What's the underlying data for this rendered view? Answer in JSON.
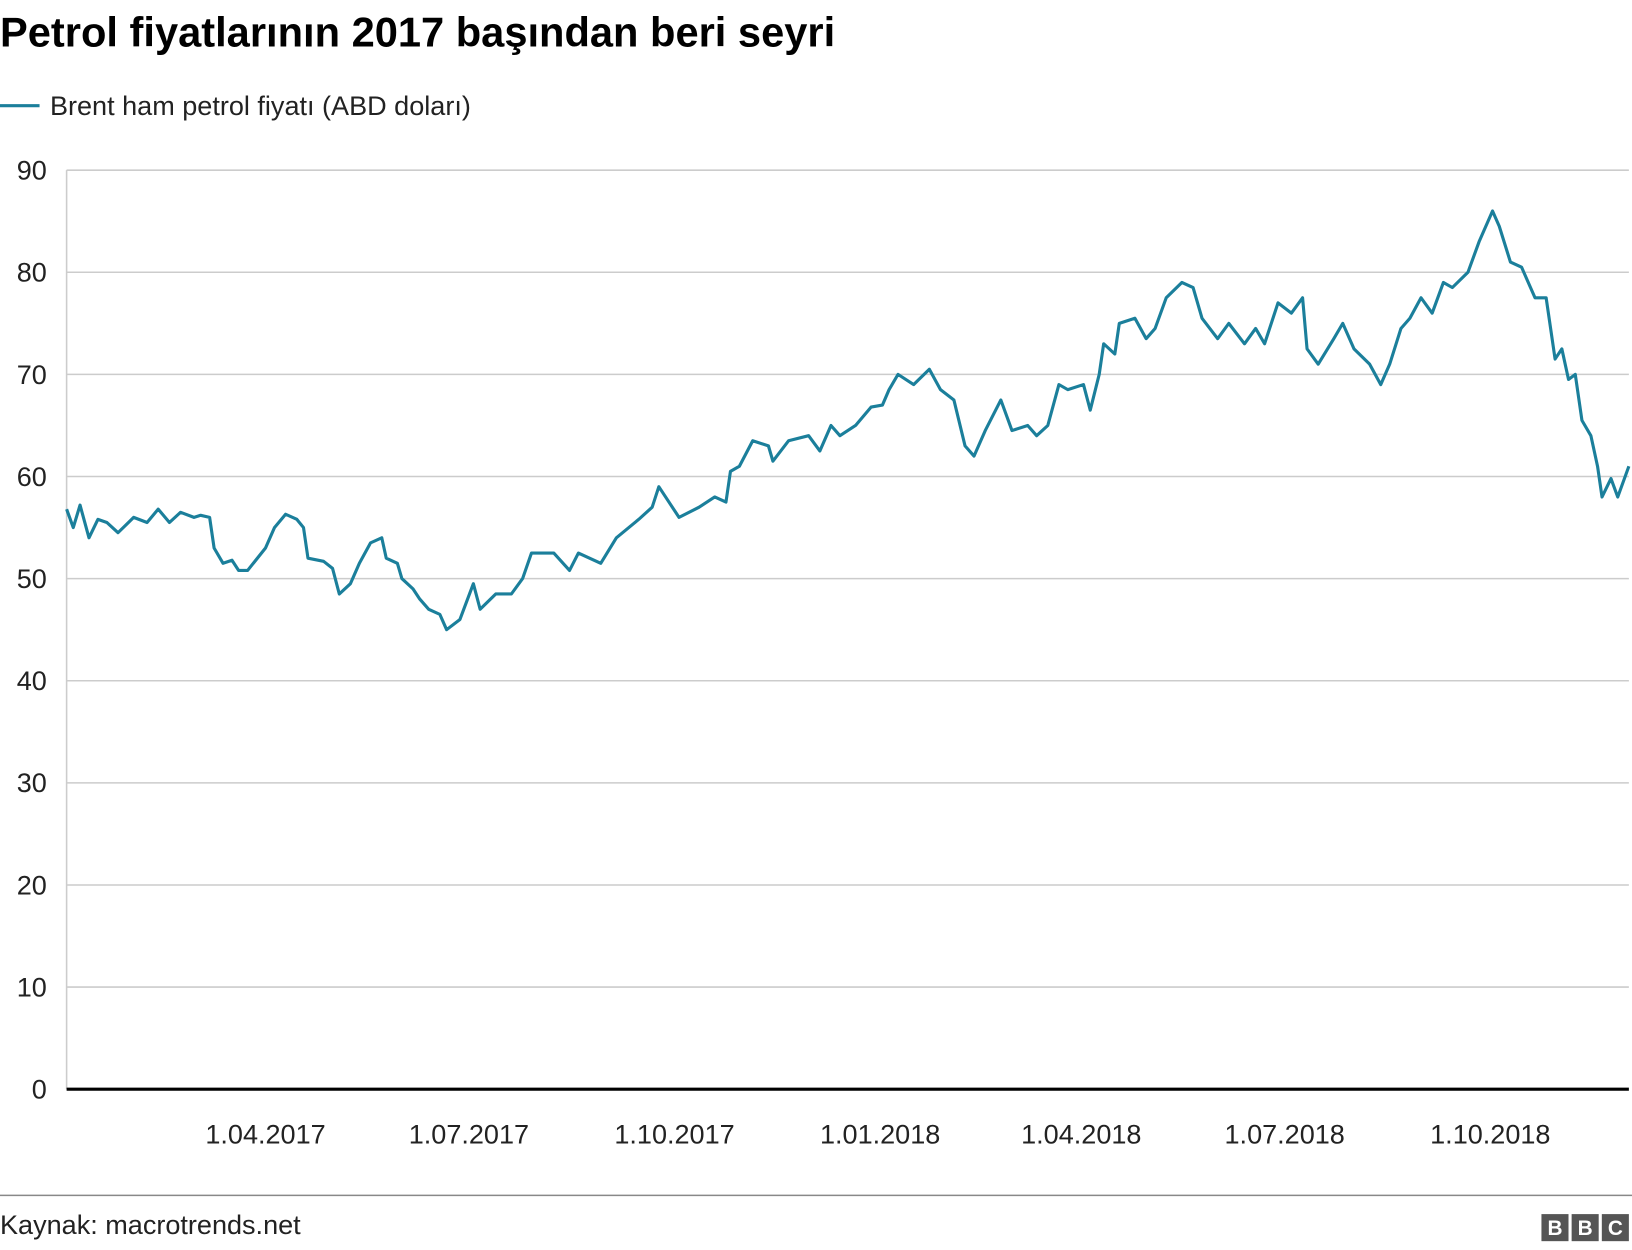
{
  "chart_data": {
    "type": "line",
    "title": "Petrol fiyatlarının 2017 başından beri seyri",
    "xlabel": "",
    "ylabel": "",
    "ylim": [
      0,
      90
    ],
    "yticks": [
      "0",
      "10",
      "20",
      "30",
      "40",
      "50",
      "60",
      "70",
      "80",
      "90"
    ],
    "xticks": [
      {
        "label": "1.04.2017",
        "date": "2017-04-01"
      },
      {
        "label": "1.07.2017",
        "date": "2017-07-01"
      },
      {
        "label": "1.10.2017",
        "date": "2017-10-01"
      },
      {
        "label": "1.01.2018",
        "date": "2018-01-01"
      },
      {
        "label": "1.04.2018",
        "date": "2018-04-01"
      },
      {
        "label": "1.07.2018",
        "date": "2018-07-01"
      },
      {
        "label": "1.10.2018",
        "date": "2018-10-01"
      }
    ],
    "xlim": [
      "2017-01-02",
      "2018-12-02"
    ],
    "grid": true,
    "legend_position": "top-left",
    "series": [
      {
        "name": "Brent ham petrol fiyatı (ABD doları)",
        "color": "#1b7f9b",
        "points": [
          [
            "2017-01-02",
            56.8
          ],
          [
            "2017-01-05",
            55.0
          ],
          [
            "2017-01-08",
            57.2
          ],
          [
            "2017-01-12",
            54.0
          ],
          [
            "2017-01-16",
            55.8
          ],
          [
            "2017-01-20",
            55.5
          ],
          [
            "2017-01-25",
            54.5
          ],
          [
            "2017-02-01",
            56.0
          ],
          [
            "2017-02-07",
            55.5
          ],
          [
            "2017-02-12",
            56.8
          ],
          [
            "2017-02-17",
            55.5
          ],
          [
            "2017-02-22",
            56.5
          ],
          [
            "2017-02-28",
            56.0
          ],
          [
            "2017-03-03",
            56.2
          ],
          [
            "2017-03-07",
            56.0
          ],
          [
            "2017-03-09",
            53.0
          ],
          [
            "2017-03-13",
            51.5
          ],
          [
            "2017-03-17",
            51.8
          ],
          [
            "2017-03-20",
            50.8
          ],
          [
            "2017-03-24",
            50.8
          ],
          [
            "2017-04-01",
            53.0
          ],
          [
            "2017-04-05",
            55.0
          ],
          [
            "2017-04-10",
            56.3
          ],
          [
            "2017-04-15",
            55.8
          ],
          [
            "2017-04-18",
            55.0
          ],
          [
            "2017-04-20",
            52.0
          ],
          [
            "2017-04-27",
            51.7
          ],
          [
            "2017-05-01",
            51.0
          ],
          [
            "2017-05-04",
            48.5
          ],
          [
            "2017-05-09",
            49.5
          ],
          [
            "2017-05-13",
            51.5
          ],
          [
            "2017-05-18",
            53.5
          ],
          [
            "2017-05-23",
            54.0
          ],
          [
            "2017-05-25",
            52.0
          ],
          [
            "2017-05-30",
            51.5
          ],
          [
            "2017-06-01",
            50.0
          ],
          [
            "2017-06-06",
            49.0
          ],
          [
            "2017-06-09",
            48.0
          ],
          [
            "2017-06-13",
            47.0
          ],
          [
            "2017-06-18",
            46.5
          ],
          [
            "2017-06-21",
            45.0
          ],
          [
            "2017-06-27",
            46.0
          ],
          [
            "2017-07-03",
            49.5
          ],
          [
            "2017-07-06",
            47.0
          ],
          [
            "2017-07-13",
            48.5
          ],
          [
            "2017-07-20",
            48.5
          ],
          [
            "2017-07-25",
            50.0
          ],
          [
            "2017-07-29",
            52.5
          ],
          [
            "2017-08-08",
            52.5
          ],
          [
            "2017-08-15",
            50.8
          ],
          [
            "2017-08-19",
            52.5
          ],
          [
            "2017-08-29",
            51.5
          ],
          [
            "2017-09-05",
            54.0
          ],
          [
            "2017-09-15",
            55.8
          ],
          [
            "2017-09-21",
            57.0
          ],
          [
            "2017-09-24",
            59.0
          ],
          [
            "2017-10-03",
            56.0
          ],
          [
            "2017-10-12",
            57.0
          ],
          [
            "2017-10-19",
            58.0
          ],
          [
            "2017-10-24",
            57.5
          ],
          [
            "2017-10-26",
            60.5
          ],
          [
            "2017-10-30",
            61.0
          ],
          [
            "2017-11-05",
            63.5
          ],
          [
            "2017-11-12",
            63.0
          ],
          [
            "2017-11-14",
            61.5
          ],
          [
            "2017-11-21",
            63.5
          ],
          [
            "2017-11-30",
            64.0
          ],
          [
            "2017-12-05",
            62.5
          ],
          [
            "2017-12-10",
            65.0
          ],
          [
            "2017-12-14",
            64.0
          ],
          [
            "2017-12-21",
            65.0
          ],
          [
            "2017-12-28",
            66.8
          ],
          [
            "2018-01-02",
            67.0
          ],
          [
            "2018-01-05",
            68.5
          ],
          [
            "2018-01-09",
            70.0
          ],
          [
            "2018-01-16",
            69.0
          ],
          [
            "2018-01-23",
            70.5
          ],
          [
            "2018-01-28",
            68.5
          ],
          [
            "2018-02-03",
            67.5
          ],
          [
            "2018-02-08",
            63.0
          ],
          [
            "2018-02-12",
            62.0
          ],
          [
            "2018-02-17",
            64.5
          ],
          [
            "2018-02-24",
            67.5
          ],
          [
            "2018-03-01",
            64.5
          ],
          [
            "2018-03-08",
            65.0
          ],
          [
            "2018-03-12",
            64.0
          ],
          [
            "2018-03-17",
            65.0
          ],
          [
            "2018-03-22",
            69.0
          ],
          [
            "2018-03-26",
            68.5
          ],
          [
            "2018-04-02",
            69.0
          ],
          [
            "2018-04-05",
            66.5
          ],
          [
            "2018-04-09",
            70.0
          ],
          [
            "2018-04-11",
            73.0
          ],
          [
            "2018-04-16",
            72.0
          ],
          [
            "2018-04-18",
            75.0
          ],
          [
            "2018-04-25",
            75.5
          ],
          [
            "2018-04-30",
            73.5
          ],
          [
            "2018-05-04",
            74.5
          ],
          [
            "2018-05-09",
            77.5
          ],
          [
            "2018-05-16",
            79.0
          ],
          [
            "2018-05-21",
            78.5
          ],
          [
            "2018-05-25",
            75.5
          ],
          [
            "2018-06-01",
            73.5
          ],
          [
            "2018-06-06",
            75.0
          ],
          [
            "2018-06-13",
            73.0
          ],
          [
            "2018-06-18",
            74.5
          ],
          [
            "2018-06-22",
            73.0
          ],
          [
            "2018-06-28",
            77.0
          ],
          [
            "2018-07-04",
            76.0
          ],
          [
            "2018-07-09",
            77.5
          ],
          [
            "2018-07-11",
            72.5
          ],
          [
            "2018-07-16",
            71.0
          ],
          [
            "2018-07-23",
            73.5
          ],
          [
            "2018-07-27",
            75.0
          ],
          [
            "2018-08-01",
            72.5
          ],
          [
            "2018-08-08",
            71.0
          ],
          [
            "2018-08-13",
            69.0
          ],
          [
            "2018-08-17",
            71.0
          ],
          [
            "2018-08-22",
            74.5
          ],
          [
            "2018-08-26",
            75.5
          ],
          [
            "2018-08-31",
            77.5
          ],
          [
            "2018-09-05",
            76.0
          ],
          [
            "2018-09-10",
            79.0
          ],
          [
            "2018-09-14",
            78.5
          ],
          [
            "2018-09-21",
            80.0
          ],
          [
            "2018-09-26",
            83.0
          ],
          [
            "2018-10-02",
            86.0
          ],
          [
            "2018-10-05",
            84.5
          ],
          [
            "2018-10-10",
            81.0
          ],
          [
            "2018-10-15",
            80.5
          ],
          [
            "2018-10-21",
            77.5
          ],
          [
            "2018-10-26",
            77.5
          ],
          [
            "2018-10-30",
            71.5
          ],
          [
            "2018-11-02",
            72.5
          ],
          [
            "2018-11-05",
            69.5
          ],
          [
            "2018-11-08",
            70.0
          ],
          [
            "2018-11-11",
            65.5
          ],
          [
            "2018-11-15",
            64.0
          ],
          [
            "2018-11-18",
            61.0
          ],
          [
            "2018-11-20",
            58.0
          ],
          [
            "2018-11-24",
            59.8
          ],
          [
            "2018-11-27",
            58.0
          ],
          [
            "2018-12-02",
            61.0
          ]
        ]
      }
    ]
  },
  "footer": {
    "source": "Kaynak: macrotrends.net",
    "logo": "BBC"
  }
}
